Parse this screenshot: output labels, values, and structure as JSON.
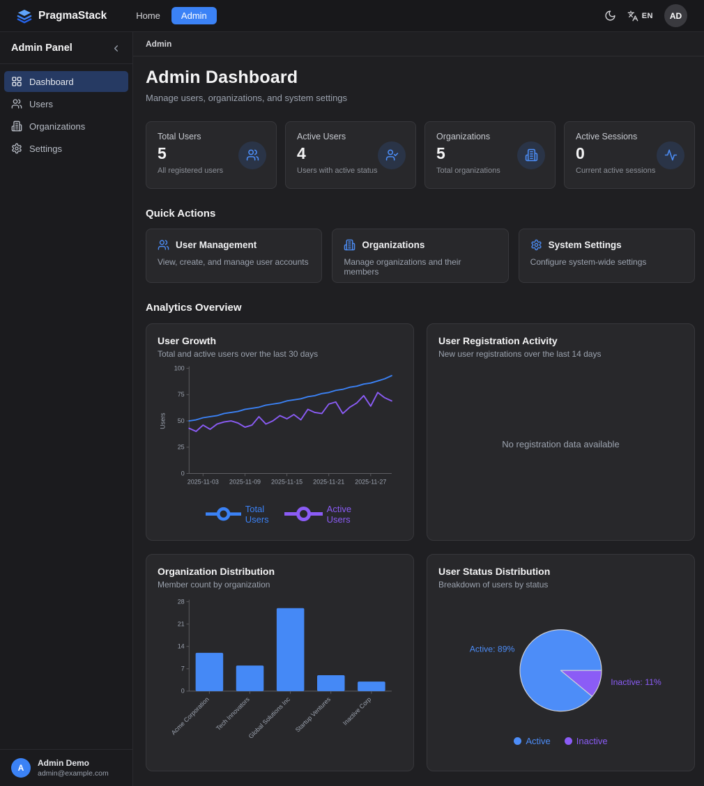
{
  "navbar": {
    "brand": "PragmaStack",
    "links": [
      {
        "label": "Home",
        "active": false
      },
      {
        "label": "Admin",
        "active": true
      }
    ],
    "lang": "EN",
    "avatar": "AD"
  },
  "sidebar": {
    "title": "Admin Panel",
    "collapse_icon": "chevron-left",
    "items": [
      {
        "label": "Dashboard",
        "icon": "dashboard-grid",
        "active": true
      },
      {
        "label": "Users",
        "icon": "users",
        "active": false
      },
      {
        "label": "Organizations",
        "icon": "building",
        "active": false
      },
      {
        "label": "Settings",
        "icon": "gear",
        "active": false
      }
    ],
    "user": {
      "initial": "A",
      "name": "Admin Demo",
      "email": "admin@example.com"
    }
  },
  "breadcrumb": "Admin",
  "header": {
    "title": "Admin Dashboard",
    "subtitle": "Manage users, organizations, and system settings"
  },
  "stats": [
    {
      "label": "Total Users",
      "value": "5",
      "description": "All registered users",
      "icon": "users"
    },
    {
      "label": "Active Users",
      "value": "4",
      "description": "Users with active status",
      "icon": "user-check"
    },
    {
      "label": "Organizations",
      "value": "5",
      "description": "Total organizations",
      "icon": "building"
    },
    {
      "label": "Active Sessions",
      "value": "0",
      "description": "Current active sessions",
      "icon": "activity"
    }
  ],
  "quick_actions": {
    "heading": "Quick Actions",
    "cards": [
      {
        "title": "User Management",
        "description": "View, create, and manage user accounts",
        "icon": "users"
      },
      {
        "title": "Organizations",
        "description": "Manage organizations and their members",
        "icon": "building"
      },
      {
        "title": "System Settings",
        "description": "Configure system-wide settings",
        "icon": "gear"
      }
    ]
  },
  "analytics": {
    "heading": "Analytics Overview",
    "user_growth": {
      "title": "User Growth",
      "subtitle": "Total and active users over the last 30 days"
    },
    "registration": {
      "title": "User Registration Activity",
      "subtitle": "New user registrations over the last 14 days",
      "empty_text": "No registration data available"
    },
    "org_distribution": {
      "title": "Organization Distribution",
      "subtitle": "Member count by organization"
    },
    "user_status": {
      "title": "User Status Distribution",
      "subtitle": "Breakdown of users by status"
    }
  },
  "chart_data": [
    {
      "type": "line",
      "title": "User Growth",
      "ylabel": "Users",
      "ylim": [
        0,
        100
      ],
      "yticks": [
        0,
        25,
        50,
        75,
        100
      ],
      "x_tick_labels": [
        "2025-11-03",
        "2025-11-09",
        "2025-11-15",
        "2025-11-21",
        "2025-11-27"
      ],
      "x_tick_indices": [
        2,
        8,
        14,
        20,
        26
      ],
      "legend_position": "bottom",
      "grid": false,
      "series": [
        {
          "name": "Total Users",
          "color": "#3b82f6",
          "values": [
            50,
            51,
            53,
            54,
            55,
            57,
            58,
            59,
            61,
            62,
            63,
            65,
            66,
            67,
            69,
            70,
            71,
            73,
            74,
            76,
            77,
            79,
            80,
            82,
            83,
            85,
            86,
            88,
            90,
            93
          ]
        },
        {
          "name": "Active Users",
          "color": "#8b5cf6",
          "values": [
            43,
            40,
            46,
            42,
            47,
            49,
            50,
            48,
            44,
            46,
            54,
            47,
            50,
            55,
            52,
            56,
            51,
            61,
            58,
            57,
            66,
            68,
            57,
            63,
            67,
            74,
            64,
            77,
            72,
            69
          ]
        }
      ]
    },
    {
      "type": "bar",
      "title": "Organization Distribution",
      "categories": [
        "Acme Corporation",
        "Tech Innovators",
        "Global Solutions Inc",
        "Startup Ventures",
        "Inactive Corp"
      ],
      "values": [
        12,
        8,
        26,
        5,
        3
      ],
      "ylim": [
        0,
        28
      ],
      "yticks": [
        0,
        7,
        14,
        21,
        28
      ],
      "bar_color": "#4589f6",
      "xlabel": "",
      "ylabel": ""
    },
    {
      "type": "pie",
      "title": "User Status Distribution",
      "slices": [
        {
          "label": "Active",
          "pct": 89,
          "color": "#4d8df8",
          "label_text": "Active: 89%",
          "start_deg": 39.6,
          "end_deg": 360
        },
        {
          "label": "Inactive",
          "pct": 11,
          "color": "#8b5cf6",
          "label_text": "Inactive: 11%",
          "start_deg": 0,
          "end_deg": 39.6
        }
      ],
      "legend": [
        "Active",
        "Inactive"
      ],
      "legend_position": "bottom"
    }
  ],
  "colors": {
    "accent_blue": "#3b82f6",
    "accent_purple": "#8b5cf6",
    "card_bg": "#28282b"
  }
}
